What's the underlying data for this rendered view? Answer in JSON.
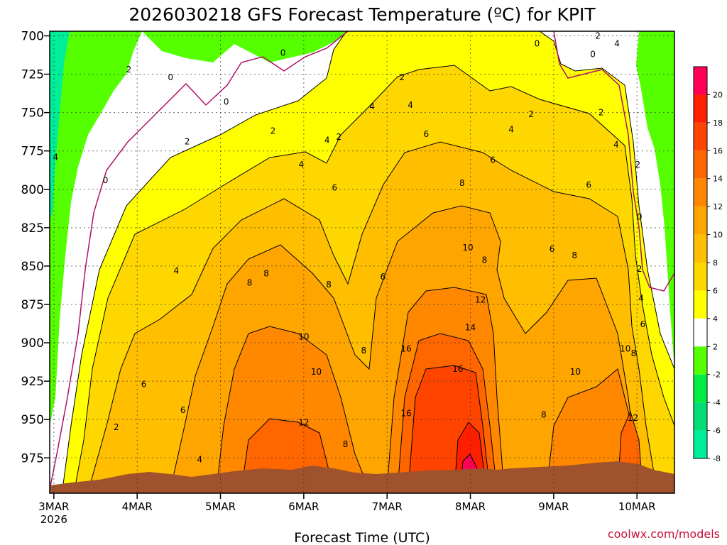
{
  "chart_data": {
    "type": "heatmap",
    "title": "2026030218 GFS Forecast Temperature (ºC) for KPIT",
    "xlabel": "Forecast Time (UTC)",
    "ylabel": "",
    "credit": "coolwx.com/models",
    "x_ticks": [
      "3MAR",
      "4MAR",
      "5MAR",
      "6MAR",
      "7MAR",
      "8MAR",
      "9MAR",
      "10MAR"
    ],
    "x_start_year": "2026",
    "y_ticks": [
      700,
      725,
      750,
      775,
      800,
      825,
      850,
      875,
      900,
      925,
      950,
      975
    ],
    "ylim": [
      998,
      697
    ],
    "xlim_days": [
      -0.05,
      7.45
    ],
    "colorbar": {
      "labels": [
        20,
        18,
        16,
        14,
        12,
        10,
        8,
        6,
        4,
        2,
        -2,
        -4,
        -6,
        -8
      ],
      "colors": [
        "#ff0055",
        "#ff1e00",
        "#ff4400",
        "#ff6600",
        "#ff8800",
        "#ffa500",
        "#ffbe00",
        "#ffd700",
        "#ffff00",
        "#ffffff",
        "#55ff00",
        "#00ee44",
        "#00dd77",
        "#00ee99"
      ]
    },
    "contour_labels": [
      {
        "text": "4",
        "day": 0.02,
        "p": 779
      },
      {
        "text": "2",
        "day": 0.9,
        "p": 722
      },
      {
        "text": "0",
        "day": 1.4,
        "p": 727
      },
      {
        "text": "0",
        "day": 0.62,
        "p": 794
      },
      {
        "text": "2",
        "day": 1.6,
        "p": 769
      },
      {
        "text": "0",
        "day": 2.07,
        "p": 743
      },
      {
        "text": "0",
        "day": 2.75,
        "p": 711
      },
      {
        "text": "2",
        "day": 2.63,
        "p": 762
      },
      {
        "text": "4",
        "day": 2.97,
        "p": 784
      },
      {
        "text": "4",
        "day": 3.28,
        "p": 768
      },
      {
        "text": "2",
        "day": 3.42,
        "p": 766
      },
      {
        "text": "4",
        "day": 3.82,
        "p": 746
      },
      {
        "text": "2",
        "day": 4.18,
        "p": 727
      },
      {
        "text": "4",
        "day": 4.28,
        "p": 745
      },
      {
        "text": "6",
        "day": 4.47,
        "p": 764
      },
      {
        "text": "6",
        "day": 3.37,
        "p": 799
      },
      {
        "text": "8",
        "day": 4.9,
        "p": 796
      },
      {
        "text": "6",
        "day": 5.27,
        "p": 781
      },
      {
        "text": "4",
        "day": 5.49,
        "p": 761
      },
      {
        "text": "2",
        "day": 5.73,
        "p": 751
      },
      {
        "text": "0",
        "day": 5.8,
        "p": 705
      },
      {
        "text": "0",
        "day": 6.47,
        "p": 712
      },
      {
        "text": "2",
        "day": 6.53,
        "p": 700
      },
      {
        "text": "4",
        "day": 6.76,
        "p": 705
      },
      {
        "text": "4",
        "day": 6.75,
        "p": 771
      },
      {
        "text": "2",
        "day": 6.57,
        "p": 750
      },
      {
        "text": "2",
        "day": 7.01,
        "p": 784
      },
      {
        "text": "6",
        "day": 6.42,
        "p": 797
      },
      {
        "text": "0",
        "day": 7.03,
        "p": 818
      },
      {
        "text": "2",
        "day": 7.03,
        "p": 852
      },
      {
        "text": "4",
        "day": 7.05,
        "p": 871
      },
      {
        "text": "6",
        "day": 7.07,
        "p": 888
      },
      {
        "text": "4",
        "day": 1.47,
        "p": 853
      },
      {
        "text": "6",
        "day": 1.08,
        "p": 927
      },
      {
        "text": "6",
        "day": 1.55,
        "p": 944
      },
      {
        "text": "2",
        "day": 0.75,
        "p": 955
      },
      {
        "text": "4",
        "day": 1.75,
        "p": 976
      },
      {
        "text": "8",
        "day": 2.35,
        "p": 861
      },
      {
        "text": "8",
        "day": 2.55,
        "p": 855
      },
      {
        "text": "8",
        "day": 3.3,
        "p": 862
      },
      {
        "text": "6",
        "day": 3.95,
        "p": 857
      },
      {
        "text": "10",
        "day": 3.0,
        "p": 896
      },
      {
        "text": "10",
        "day": 3.15,
        "p": 919
      },
      {
        "text": "12",
        "day": 3.0,
        "p": 952
      },
      {
        "text": "8",
        "day": 3.5,
        "p": 966
      },
      {
        "text": "8",
        "day": 3.72,
        "p": 905
      },
      {
        "text": "16",
        "day": 4.23,
        "p": 904
      },
      {
        "text": "16",
        "day": 4.23,
        "p": 946
      },
      {
        "text": "16",
        "day": 4.85,
        "p": 917
      },
      {
        "text": "14",
        "day": 5.0,
        "p": 890
      },
      {
        "text": "12",
        "day": 5.12,
        "p": 872
      },
      {
        "text": "10",
        "day": 4.97,
        "p": 838
      },
      {
        "text": "8",
        "day": 5.17,
        "p": 846
      },
      {
        "text": "6",
        "day": 5.98,
        "p": 839
      },
      {
        "text": "8",
        "day": 6.25,
        "p": 843
      },
      {
        "text": "8",
        "day": 5.88,
        "p": 947
      },
      {
        "text": "10",
        "day": 6.26,
        "p": 919
      },
      {
        "text": "10",
        "day": 6.86,
        "p": 904
      },
      {
        "text": "8",
        "day": 6.96,
        "p": 907
      },
      {
        "text": "12",
        "day": 6.95,
        "p": 949
      }
    ]
  }
}
